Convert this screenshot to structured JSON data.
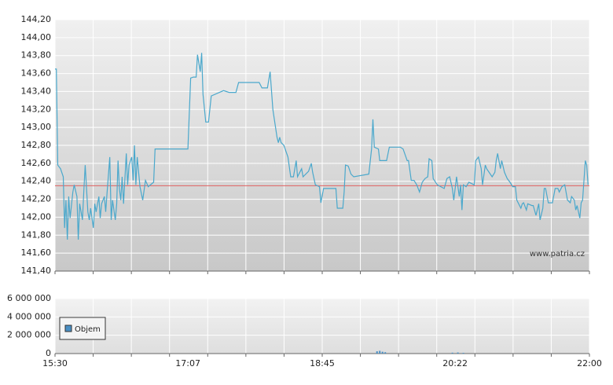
{
  "chart_data": [
    {
      "type": "line",
      "color": "#4aa8cc",
      "xlim": [
        "15:30",
        "22:00"
      ],
      "ylim": [
        141.4,
        144.2
      ],
      "yticks": [
        {
          "value": 141.4,
          "label": "141,40"
        },
        {
          "value": 141.6,
          "label": "141,60"
        },
        {
          "value": 141.8,
          "label": "141,80"
        },
        {
          "value": 142.0,
          "label": "142,00"
        },
        {
          "value": 142.2,
          "label": "142,20"
        },
        {
          "value": 142.4,
          "label": "142,40"
        },
        {
          "value": 142.6,
          "label": "142,60"
        },
        {
          "value": 142.8,
          "label": "142,80"
        },
        {
          "value": 143.0,
          "label": "143,00"
        },
        {
          "value": 143.2,
          "label": "143,20"
        },
        {
          "value": 143.4,
          "label": "143,40"
        },
        {
          "value": 143.6,
          "label": "143,60"
        },
        {
          "value": 143.8,
          "label": "143,80"
        },
        {
          "value": 144.0,
          "label": "144,00"
        },
        {
          "value": 144.2,
          "label": "144,20"
        }
      ],
      "grid": true,
      "x_grid_divisions": 14,
      "reference_line": {
        "value": 142.35,
        "color": "#e06060"
      },
      "watermark": "www.patria.cz",
      "x": [
        "15:30",
        "15:31",
        "15:32",
        "15:34",
        "15:36",
        "15:37",
        "15:38",
        "15:39",
        "15:40",
        "15:41",
        "15:43",
        "15:44",
        "15:46",
        "15:47",
        "15:48",
        "15:50",
        "15:51",
        "15:52",
        "15:54",
        "15:55",
        "15:56",
        "15:58",
        "15:59",
        "16:00",
        "16:02",
        "16:03",
        "16:04",
        "16:06",
        "16:07",
        "16:08",
        "16:10",
        "16:11",
        "16:12",
        "16:14",
        "16:15",
        "16:16",
        "16:17",
        "16:18",
        "16:19",
        "16:20",
        "16:22",
        "16:23",
        "16:24",
        "16:26",
        "16:27",
        "16:28",
        "16:29",
        "16:30",
        "16:32",
        "16:34",
        "16:36",
        "16:38",
        "16:42",
        "16:43",
        "17:07",
        "17:09",
        "17:11",
        "17:13",
        "17:14",
        "17:16",
        "17:17",
        "17:18",
        "17:20",
        "17:22",
        "17:24",
        "17:33",
        "17:37",
        "17:42",
        "17:44",
        "17:59",
        "18:01",
        "18:05",
        "18:07",
        "18:09",
        "18:12",
        "18:13",
        "18:14",
        "18:15",
        "18:17",
        "18:20",
        "18:22",
        "18:24",
        "18:26",
        "18:27",
        "18:30",
        "18:31",
        "18:35",
        "18:37",
        "18:38",
        "18:40",
        "18:43",
        "18:44",
        "18:46",
        "18:55",
        "18:56",
        "19:00",
        "19:01",
        "19:02",
        "19:04",
        "19:06",
        "19:08",
        "19:19",
        "19:21",
        "19:22",
        "19:23",
        "19:26",
        "19:27",
        "19:32",
        "19:34",
        "19:42",
        "19:44",
        "19:47",
        "19:48",
        "19:50",
        "19:52",
        "19:54",
        "19:56",
        "19:58",
        "20:00",
        "20:02",
        "20:03",
        "20:05",
        "20:06",
        "20:09",
        "20:14",
        "20:16",
        "20:18",
        "20:20",
        "20:21",
        "20:23",
        "20:25",
        "20:26",
        "20:27",
        "20:28",
        "20:30",
        "20:32",
        "20:36",
        "20:37",
        "20:39",
        "20:41",
        "20:42",
        "20:44",
        "20:45",
        "20:49",
        "20:51",
        "20:52",
        "20:53",
        "20:55",
        "20:56",
        "20:58",
        "21:00",
        "21:02",
        "21:04",
        "21:06",
        "21:07",
        "21:10",
        "21:11",
        "21:12",
        "21:14",
        "21:15",
        "21:18",
        "21:19",
        "21:21",
        "21:23",
        "21:24",
        "21:26",
        "21:27",
        "21:28",
        "21:30",
        "21:33",
        "21:35",
        "21:37",
        "21:38",
        "21:40",
        "21:42",
        "21:44",
        "21:46",
        "21:47",
        "21:49",
        "21:50",
        "21:51",
        "21:53",
        "21:54",
        "21:55",
        "21:57",
        "21:58",
        "21:59"
      ],
      "values": [
        143.65,
        143.65,
        142.58,
        142.54,
        142.45,
        141.88,
        142.19,
        141.75,
        142.23,
        141.99,
        142.28,
        142.36,
        142.23,
        141.75,
        142.15,
        141.97,
        142.28,
        142.58,
        142.06,
        141.97,
        142.1,
        141.88,
        142.15,
        142.06,
        142.23,
        141.99,
        142.15,
        142.23,
        142.06,
        142.28,
        142.67,
        141.97,
        142.19,
        141.97,
        142.15,
        142.63,
        142.32,
        142.19,
        142.45,
        142.15,
        142.71,
        142.36,
        142.58,
        142.67,
        142.41,
        142.8,
        142.36,
        142.67,
        142.34,
        142.19,
        142.41,
        142.34,
        142.39,
        142.76,
        142.76,
        143.55,
        143.56,
        143.56,
        143.81,
        143.62,
        143.83,
        143.37,
        143.06,
        143.06,
        143.35,
        143.41,
        143.39,
        143.39,
        143.5,
        143.5,
        143.44,
        143.44,
        143.62,
        143.2,
        142.89,
        142.83,
        142.89,
        142.83,
        142.8,
        142.67,
        142.45,
        142.45,
        142.63,
        142.45,
        142.54,
        142.45,
        142.51,
        142.6,
        142.5,
        142.36,
        142.34,
        142.16,
        142.32,
        142.32,
        142.1,
        142.1,
        142.28,
        142.58,
        142.57,
        142.48,
        142.45,
        142.48,
        142.76,
        143.09,
        142.78,
        142.76,
        142.63,
        142.63,
        142.78,
        142.78,
        142.76,
        142.63,
        142.63,
        142.41,
        142.41,
        142.36,
        142.28,
        142.39,
        142.43,
        142.45,
        142.65,
        142.63,
        142.43,
        142.36,
        142.32,
        142.43,
        142.45,
        142.32,
        142.19,
        142.45,
        142.23,
        142.36,
        142.08,
        142.36,
        142.34,
        142.39,
        142.36,
        142.63,
        142.67,
        142.54,
        142.36,
        142.58,
        142.54,
        142.45,
        142.5,
        142.63,
        142.71,
        142.54,
        142.63,
        142.5,
        142.43,
        142.39,
        142.34,
        142.34,
        142.19,
        142.1,
        142.15,
        142.16,
        142.08,
        142.15,
        142.13,
        142.13,
        142.02,
        142.15,
        141.97,
        142.1,
        142.32,
        142.32,
        142.16,
        142.16,
        142.32,
        142.32,
        142.28,
        142.34,
        142.36,
        142.19,
        142.16,
        142.23,
        142.19,
        142.08,
        142.13,
        141.99,
        142.16,
        142.19,
        142.63,
        142.58,
        142.36
      ]
    },
    {
      "type": "bar",
      "xlim": [
        "15:30",
        "22:00"
      ],
      "ylim": [
        0,
        6000000
      ],
      "yticks": [
        0,
        {
          "value": 2000000,
          "label": "2 000 000"
        },
        {
          "value": 4000000,
          "label": "4 000 000"
        },
        {
          "value": 6000000,
          "label": "6 000 000"
        }
      ],
      "xticks": [
        "15:30",
        "17:07",
        "18:45",
        "20:22",
        "22:00"
      ],
      "grid": true,
      "x_grid_divisions": 14,
      "legend": "bottom-left",
      "series": [
        {
          "name": "Objem",
          "color": "#4a8fc4",
          "x": [
            "19:25",
            "19:27",
            "19:29",
            "19:31",
            "20:20",
            "20:24",
            "20:28"
          ],
          "values": [
            250000,
            300000,
            200000,
            150000,
            100000,
            120000,
            80000
          ]
        }
      ]
    }
  ]
}
